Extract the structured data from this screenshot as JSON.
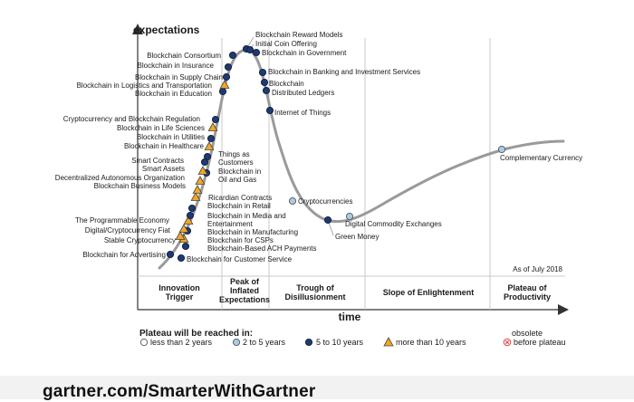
{
  "axes": {
    "y_label": "expectations",
    "x_label": "time"
  },
  "as_of": "As of July 2018",
  "phases": [
    {
      "id": "trigger",
      "lines": [
        "Innovation",
        "Trigger"
      ]
    },
    {
      "id": "peak",
      "lines": [
        "Peak of",
        "Inflated",
        "Expectations"
      ]
    },
    {
      "id": "trough",
      "lines": [
        "Trough of",
        "Disillusionment"
      ]
    },
    {
      "id": "slope",
      "lines": [
        "Slope of Enlightenment"
      ]
    },
    {
      "id": "plateau",
      "lines": [
        "Plateau of",
        "Productivity"
      ]
    }
  ],
  "legend": {
    "title": "Plateau will be reached in:",
    "items": [
      {
        "id": "lt2",
        "label": "less than 2 years",
        "marker": "circle",
        "color": "#ffffff"
      },
      {
        "id": "2to5",
        "label": "2 to 5 years",
        "marker": "circle",
        "color": "#a9cce3"
      },
      {
        "id": "5to10",
        "label": "5 to 10 years",
        "marker": "circle",
        "color": "#1f3a73"
      },
      {
        "id": "gt10",
        "label": "more than 10 years",
        "marker": "triangle",
        "color": "#f5a623"
      },
      {
        "id": "obsolete",
        "label": "obsolete before plateau",
        "lines": [
          "obsolete",
          "before plateau"
        ],
        "marker": "cross",
        "color": "#e0474c"
      }
    ]
  },
  "technologies": [
    {
      "name": "Blockchain for Customer Service",
      "plateau": "5to10"
    },
    {
      "name": "Blockchain for Advertising",
      "plateau": "5to10"
    },
    {
      "name": "Blockchain-Based ACH Payments",
      "plateau": "5to10"
    },
    {
      "name": "Blockchain for CSPs",
      "plateau": "gt10"
    },
    {
      "name": "Stable Cryptocurrency",
      "plateau": "gt10"
    },
    {
      "name": "Blockchain in Manufacturing",
      "plateau": "5to10"
    },
    {
      "name": "Digital/Cryptocurrency Fiat",
      "plateau": "gt10"
    },
    {
      "name": "The Programmable Economy",
      "plateau": "gt10"
    },
    {
      "name": "Blockchain in Media and Entertainment",
      "plateau": "5to10"
    },
    {
      "name": "Blockchain in Retail",
      "plateau": "5to10"
    },
    {
      "name": "Ricardian Contracts",
      "plateau": "gt10"
    },
    {
      "name": "Blockchain Business Models",
      "plateau": "gt10"
    },
    {
      "name": "Decentralized Autonomous Organization",
      "plateau": "gt10"
    },
    {
      "name": "Blockchain in Oil and Gas",
      "plateau": "5to10"
    },
    {
      "name": "Smart Assets",
      "plateau": "gt10"
    },
    {
      "name": "Smart Contracts",
      "plateau": "5to10"
    },
    {
      "name": "Things as Customers",
      "plateau": "5to10"
    },
    {
      "name": "Blockchain in Healthcare",
      "plateau": "gt10"
    },
    {
      "name": "Blockchain in Utilities",
      "plateau": "5to10"
    },
    {
      "name": "Blockchain in Life Sciences",
      "plateau": "gt10"
    },
    {
      "name": "Cryptocurrency and Blockchain Regulation",
      "plateau": "5to10"
    },
    {
      "name": "Blockchain in Education",
      "plateau": "5to10"
    },
    {
      "name": "Blockchain in Logistics and Transportation",
      "plateau": "gt10"
    },
    {
      "name": "Blockchain in Supply Chain",
      "plateau": "5to10"
    },
    {
      "name": "Blockchain in Insurance",
      "plateau": "5to10"
    },
    {
      "name": "Blockchain Consortium",
      "plateau": "5to10"
    },
    {
      "name": "Blockchain Reward Models",
      "plateau": "5to10"
    },
    {
      "name": "Initial Coin Offering",
      "plateau": "5to10"
    },
    {
      "name": "Blockchain in Government",
      "plateau": "5to10"
    },
    {
      "name": "Blockchain in Banking and Investment Services",
      "plateau": "5to10"
    },
    {
      "name": "Blockchain",
      "plateau": "5to10"
    },
    {
      "name": "Distributed Ledgers",
      "plateau": "5to10"
    },
    {
      "name": "Internet of Things",
      "plateau": "5to10"
    },
    {
      "name": "Cryptocurrencies",
      "plateau": "2to5"
    },
    {
      "name": "Green Money",
      "plateau": "5to10"
    },
    {
      "name": "Digital Commodity Exchanges",
      "plateau": "2to5"
    },
    {
      "name": "Complementary Currency",
      "plateau": "2to5"
    }
  ],
  "colors": {
    "curve": "#9a9a9a",
    "axis": "#333333",
    "divider": "#c8c8c8",
    "text": "#1a1a1a"
  },
  "footer": "gartner.com/SmarterWithGartner"
}
